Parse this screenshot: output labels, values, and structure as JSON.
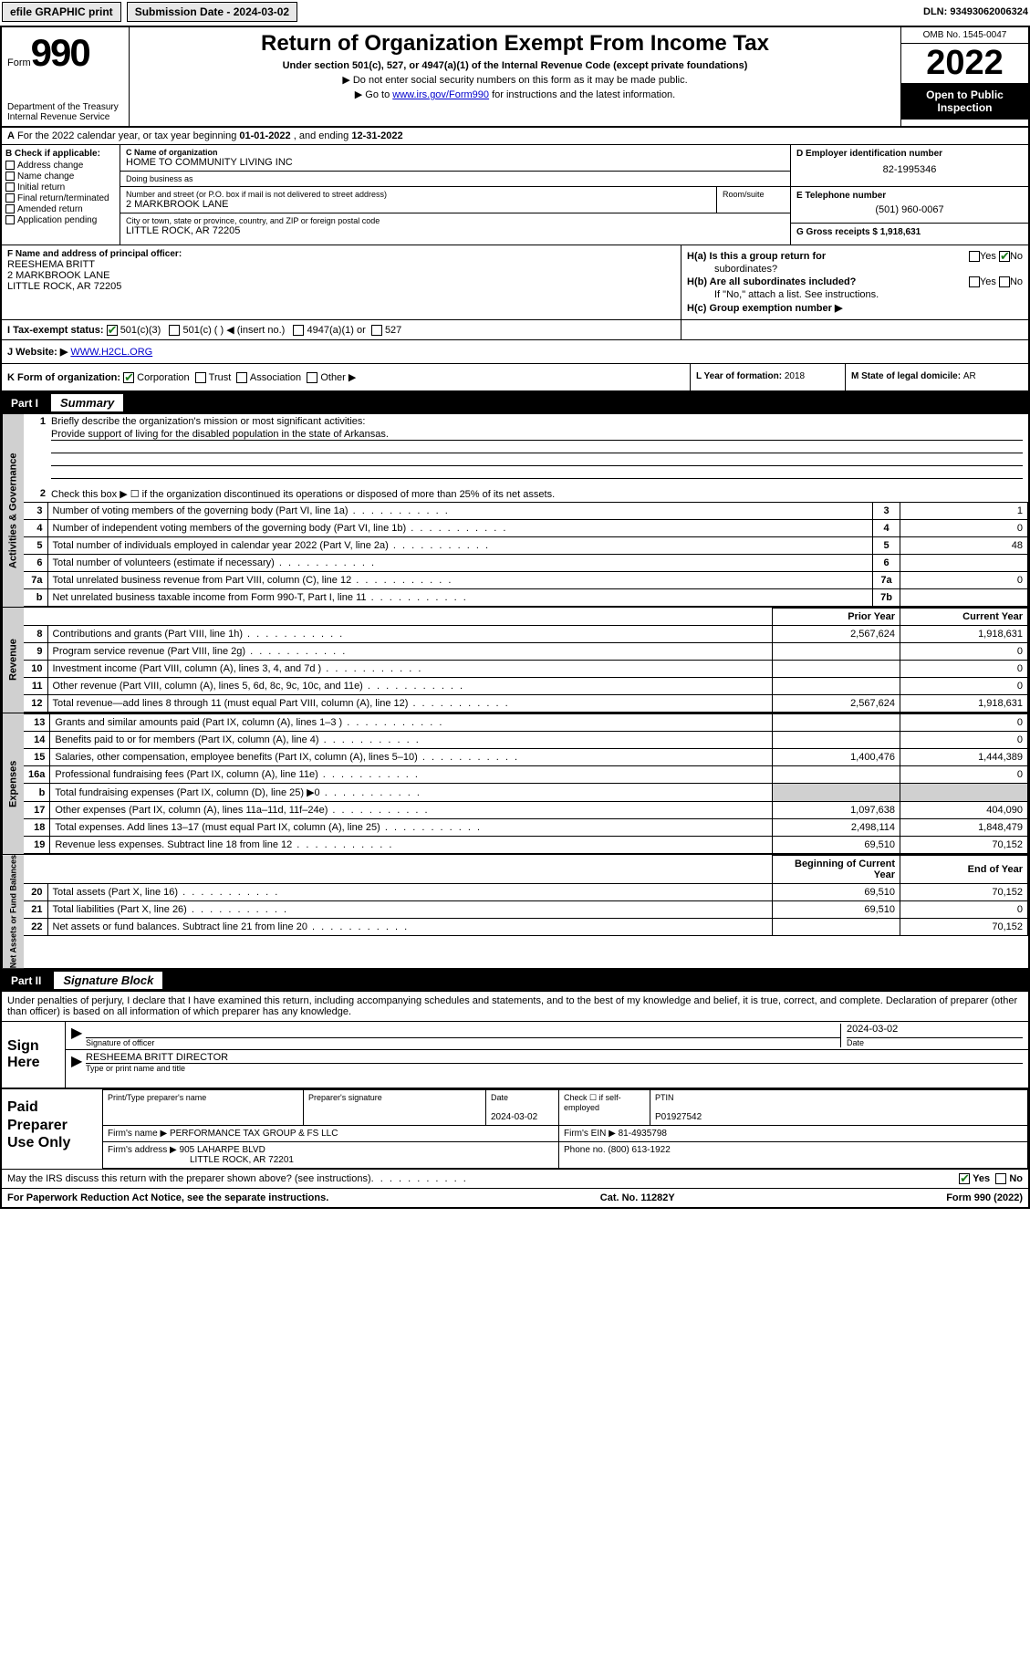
{
  "topbar": {
    "efile": "efile GRAPHIC print",
    "submission_label": "Submission Date - ",
    "submission_date": "2024-03-02",
    "dln_label": "DLN: ",
    "dln": "93493062006324"
  },
  "header": {
    "form_word": "Form",
    "form_num": "990",
    "dept": "Department of the Treasury",
    "irs": "Internal Revenue Service",
    "title": "Return of Organization Exempt From Income Tax",
    "subtitle": "Under section 501(c), 527, or 4947(a)(1) of the Internal Revenue Code (except private foundations)",
    "note1": "▶ Do not enter social security numbers on this form as it may be made public.",
    "note2_pre": "▶ Go to ",
    "note2_link": "www.irs.gov/Form990",
    "note2_post": " for instructions and the latest information.",
    "omb": "OMB No. 1545-0047",
    "year": "2022",
    "inspection": "Open to Public Inspection"
  },
  "row_a": {
    "label_a": "A",
    "text": "For the 2022 calendar year, or tax year beginning ",
    "begin": "01-01-2022",
    "mid": " , and ending ",
    "end": "12-31-2022"
  },
  "col_b": {
    "hdr": "B Check if applicable:",
    "items": [
      "Address change",
      "Name change",
      "Initial return",
      "Final return/terminated",
      "Amended return",
      "Application pending"
    ]
  },
  "col_c": {
    "name_lbl": "C Name of organization",
    "name": "HOME TO COMMUNITY LIVING INC",
    "dba_lbl": "Doing business as",
    "dba": "",
    "street_lbl": "Number and street (or P.O. box if mail is not delivered to street address)",
    "street": "2 MARKBROOK LANE",
    "room_lbl": "Room/suite",
    "room": "",
    "city_lbl": "City or town, state or province, country, and ZIP or foreign postal code",
    "city": "LITTLE ROCK, AR  72205"
  },
  "col_d": {
    "lbl": "D Employer identification number",
    "val": "82-1995346"
  },
  "col_e": {
    "lbl": "E Telephone number",
    "val": "(501) 960-0067"
  },
  "col_g": {
    "lbl": "G Gross receipts $ ",
    "val": "1,918,631"
  },
  "col_f": {
    "lbl": "F Name and address of principal officer:",
    "name": "REESHEMA BRITT",
    "addr1": "2 MARKBROOK LANE",
    "addr2": "LITTLE ROCK, AR  72205"
  },
  "col_h": {
    "ha": "H(a)  Is this a group return for",
    "ha2": "subordinates?",
    "hb": "H(b)  Are all subordinates included?",
    "hb_note": "If \"No,\" attach a list. See instructions.",
    "hc": "H(c)  Group exemption number ▶",
    "yes": "Yes",
    "no": "No"
  },
  "row_i": {
    "lbl": "I  Tax-exempt status:",
    "o1": "501(c)(3)",
    "o2": "501(c) (  ) ◀ (insert no.)",
    "o3": "4947(a)(1) or",
    "o4": "527"
  },
  "row_j": {
    "lbl": "J  Website: ▶ ",
    "val": "WWW.H2CL.ORG"
  },
  "row_k": {
    "lbl": "K Form of organization:",
    "o1": "Corporation",
    "o2": "Trust",
    "o3": "Association",
    "o4": "Other ▶"
  },
  "row_l": {
    "lbl": "L Year of formation: ",
    "val": "2018"
  },
  "row_m": {
    "lbl": "M State of legal domicile: ",
    "val": "AR"
  },
  "part1": {
    "num": "Part I",
    "title": "Summary"
  },
  "summary": {
    "l1_lbl": "Briefly describe the organization's mission or most significant activities:",
    "l1_text": "Provide support of living for the disabled population in the state of Arkansas.",
    "l2": "Check this box ▶ ☐  if the organization discontinued its operations or disposed of more than 25% of its net assets.",
    "lines_top": [
      {
        "n": "3",
        "t": "Number of voting members of the governing body (Part VI, line 1a)",
        "nb": "3",
        "v": "1"
      },
      {
        "n": "4",
        "t": "Number of independent voting members of the governing body (Part VI, line 1b)",
        "nb": "4",
        "v": "0"
      },
      {
        "n": "5",
        "t": "Total number of individuals employed in calendar year 2022 (Part V, line 2a)",
        "nb": "5",
        "v": "48"
      },
      {
        "n": "6",
        "t": "Total number of volunteers (estimate if necessary)",
        "nb": "6",
        "v": ""
      },
      {
        "n": "7a",
        "t": "Total unrelated business revenue from Part VIII, column (C), line 12",
        "nb": "7a",
        "v": "0"
      },
      {
        "n": "b",
        "t": "Net unrelated business taxable income from Form 990-T, Part I, line 11",
        "nb": "7b",
        "v": ""
      }
    ],
    "col_hdr_prior": "Prior Year",
    "col_hdr_current": "Current Year",
    "revenue": [
      {
        "n": "8",
        "t": "Contributions and grants (Part VIII, line 1h)",
        "p": "2,567,624",
        "c": "1,918,631"
      },
      {
        "n": "9",
        "t": "Program service revenue (Part VIII, line 2g)",
        "p": "",
        "c": "0"
      },
      {
        "n": "10",
        "t": "Investment income (Part VIII, column (A), lines 3, 4, and 7d )",
        "p": "",
        "c": "0"
      },
      {
        "n": "11",
        "t": "Other revenue (Part VIII, column (A), lines 5, 6d, 8c, 9c, 10c, and 11e)",
        "p": "",
        "c": "0"
      },
      {
        "n": "12",
        "t": "Total revenue—add lines 8 through 11 (must equal Part VIII, column (A), line 12)",
        "p": "2,567,624",
        "c": "1,918,631"
      }
    ],
    "expenses": [
      {
        "n": "13",
        "t": "Grants and similar amounts paid (Part IX, column (A), lines 1–3 )",
        "p": "",
        "c": "0"
      },
      {
        "n": "14",
        "t": "Benefits paid to or for members (Part IX, column (A), line 4)",
        "p": "",
        "c": "0"
      },
      {
        "n": "15",
        "t": "Salaries, other compensation, employee benefits (Part IX, column (A), lines 5–10)",
        "p": "1,400,476",
        "c": "1,444,389"
      },
      {
        "n": "16a",
        "t": "Professional fundraising fees (Part IX, column (A), line 11e)",
        "p": "",
        "c": "0"
      },
      {
        "n": "b",
        "t": "Total fundraising expenses (Part IX, column (D), line 25) ▶0",
        "p": "shade",
        "c": "shade"
      },
      {
        "n": "17",
        "t": "Other expenses (Part IX, column (A), lines 11a–11d, 11f–24e)",
        "p": "1,097,638",
        "c": "404,090"
      },
      {
        "n": "18",
        "t": "Total expenses. Add lines 13–17 (must equal Part IX, column (A), line 25)",
        "p": "2,498,114",
        "c": "1,848,479"
      },
      {
        "n": "19",
        "t": "Revenue less expenses. Subtract line 18 from line 12",
        "p": "69,510",
        "c": "70,152"
      }
    ],
    "col_hdr_begin": "Beginning of Current Year",
    "col_hdr_end": "End of Year",
    "netassets": [
      {
        "n": "20",
        "t": "Total assets (Part X, line 16)",
        "p": "69,510",
        "c": "70,152"
      },
      {
        "n": "21",
        "t": "Total liabilities (Part X, line 26)",
        "p": "69,510",
        "c": "0"
      },
      {
        "n": "22",
        "t": "Net assets or fund balances. Subtract line 21 from line 20",
        "p": "",
        "c": "70,152"
      }
    ],
    "vtab_gov": "Activities & Governance",
    "vtab_rev": "Revenue",
    "vtab_exp": "Expenses",
    "vtab_net": "Net Assets or Fund Balances"
  },
  "part2": {
    "num": "Part II",
    "title": "Signature Block"
  },
  "sig": {
    "intro": "Under penalties of perjury, I declare that I have examined this return, including accompanying schedules and statements, and to the best of my knowledge and belief, it is true, correct, and complete. Declaration of preparer (other than officer) is based on all information of which preparer has any knowledge.",
    "sign_here": "Sign Here",
    "sig_officer_lbl": "Signature of officer",
    "sig_date": "2024-03-02",
    "date_lbl": "Date",
    "name_title": "RESHEEMA BRITT  DIRECTOR",
    "name_title_lbl": "Type or print name and title"
  },
  "paid": {
    "hdr": "Paid Preparer Use Only",
    "print_lbl": "Print/Type preparer's name",
    "prep_sig_lbl": "Preparer's signature",
    "date_lbl": "Date",
    "date": "2024-03-02",
    "check_lbl": "Check ☐ if self-employed",
    "ptin_lbl": "PTIN",
    "ptin": "P01927542",
    "firm_name_lbl": "Firm's name    ▶ ",
    "firm_name": "PERFORMANCE TAX GROUP & FS LLC",
    "firm_ein_lbl": "Firm's EIN ▶ ",
    "firm_ein": "81-4935798",
    "firm_addr_lbl": "Firm's address ▶ ",
    "firm_addr1": "905 LAHARPE BLVD",
    "firm_addr2": "LITTLE ROCK, AR  72201",
    "phone_lbl": "Phone no. ",
    "phone": "(800) 613-1922"
  },
  "footer": {
    "discuss": "May the IRS discuss this return with the preparer shown above? (see instructions)",
    "yes": "Yes",
    "no": "No",
    "paperwork": "For Paperwork Reduction Act Notice, see the separate instructions.",
    "cat": "Cat. No. 11282Y",
    "form": "Form 990 (2022)"
  }
}
